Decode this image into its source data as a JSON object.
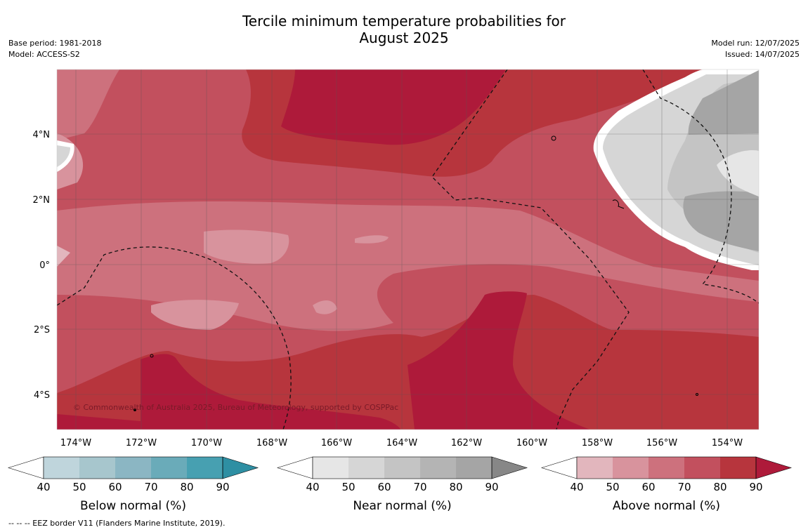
{
  "title": {
    "line1": "Tercile minimum temperature probabilities for",
    "line2": "August 2025"
  },
  "meta": {
    "base_period": "Base period: 1981-2018",
    "model": "Model: ACCESS-S2",
    "model_run": "Model run: 12/07/2025",
    "issued": "Issued: 14/07/2025"
  },
  "map": {
    "lat_ticks": [
      "4°N",
      "2°N",
      "0°",
      "2°S",
      "4°S"
    ],
    "lon_ticks": [
      "174°W",
      "172°W",
      "170°W",
      "168°W",
      "166°W",
      "164°W",
      "162°W",
      "160°W",
      "158°W",
      "156°W",
      "154°W"
    ],
    "copyright": "© Commonwealth of Australia 2025, Bureau of Meteorology, supported by COSPPac",
    "dominant_category": "Above normal",
    "dominant_level_percent": "70-90"
  },
  "legends": [
    {
      "title": "Below normal (%)",
      "ticks": [
        "40",
        "50",
        "60",
        "70",
        "80",
        "90"
      ],
      "colors": [
        "#ffffff",
        "#bfd5dc",
        "#a7c6cd",
        "#8bb6c3",
        "#6aabb9",
        "#47a0b1",
        "#2e8fa3"
      ]
    },
    {
      "title": "Near normal (%)",
      "ticks": [
        "40",
        "50",
        "60",
        "70",
        "80",
        "90"
      ],
      "colors": [
        "#ffffff",
        "#e6e6e6",
        "#d6d6d6",
        "#c4c4c4",
        "#b4b4b4",
        "#a5a5a5",
        "#878787"
      ]
    },
    {
      "title": "Above normal (%)",
      "ticks": [
        "40",
        "50",
        "60",
        "70",
        "80",
        "90"
      ],
      "colors": [
        "#ffffff",
        "#e2b6bd",
        "#d8939d",
        "#cd717d",
        "#c2505e",
        "#b7353d",
        "#ae1a3a"
      ]
    }
  ],
  "footnote": "--  --  -- EEZ border V11 (Flanders Marine Institute, 2019)."
}
